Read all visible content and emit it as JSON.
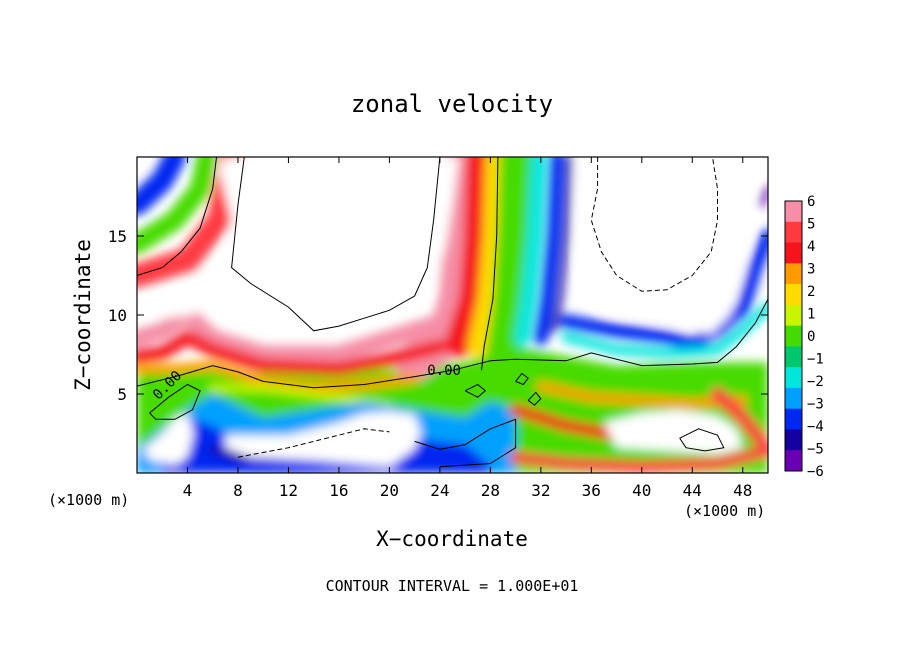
{
  "chart_data": {
    "type": "heatmap",
    "title": "zonal velocity",
    "xlabel": "X−coordinate",
    "ylabel": "Z−coordinate",
    "x_unit_label_left": "(×1000 m)",
    "x_unit_label_right": "(×1000 m)",
    "footer": "CONTOUR INTERVAL = 1.000E+01",
    "xlim": [
      0,
      50
    ],
    "ylim": [
      0,
      20
    ],
    "x_ticks": [
      4,
      8,
      12,
      16,
      20,
      24,
      28,
      32,
      36,
      40,
      44,
      48
    ],
    "x_tick_labels": [
      "4",
      "8",
      "12",
      "16",
      "20",
      "24",
      "28",
      "32",
      "36",
      "40",
      "44",
      "48"
    ],
    "y_ticks": [
      5,
      10,
      15
    ],
    "y_tick_labels": [
      "5",
      "10",
      "15"
    ],
    "contour_labels": [
      {
        "text": "0.00",
        "x": 23,
        "y": 6.2
      },
      {
        "text": "0.00",
        "x": 1.7,
        "y": 4.6
      }
    ],
    "colorbar": {
      "levels": [
        6,
        5,
        4,
        3,
        2,
        1,
        0,
        -1,
        -2,
        -3,
        -4,
        -5,
        -6
      ],
      "labels": [
        "6",
        "5",
        "4",
        "3",
        "2",
        "1",
        "0",
        "−1",
        "−2",
        "−3",
        "−4",
        "−5",
        "−6"
      ],
      "colors": [
        "#f58ea6",
        "#ff3b42",
        "#f5141c",
        "#ff9a00",
        "#ffdb00",
        "#c8f500",
        "#46db00",
        "#00c86e",
        "#00e6dc",
        "#00a0ff",
        "#0028f0",
        "#1400a0",
        "#6a00b4"
      ]
    }
  }
}
